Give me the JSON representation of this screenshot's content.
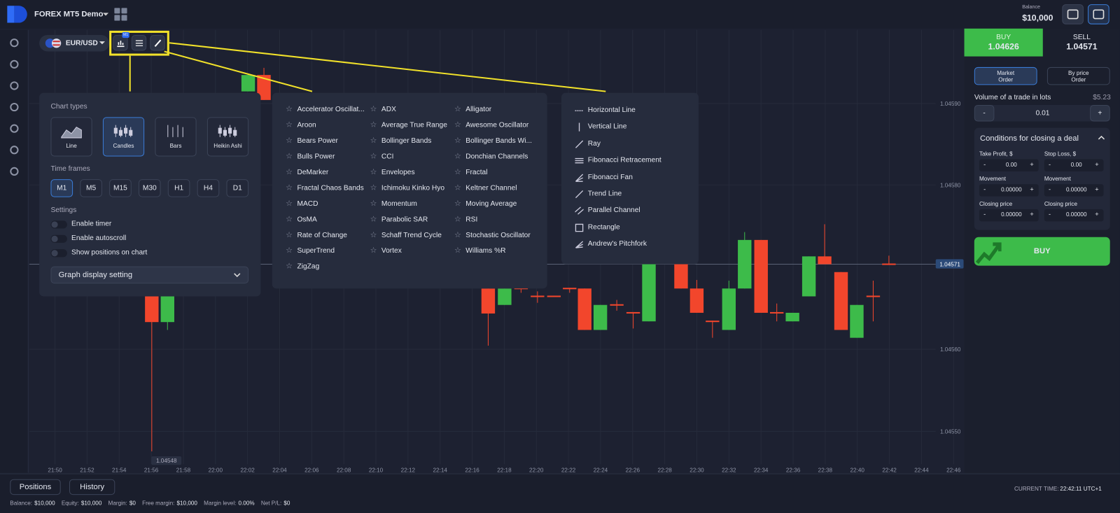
{
  "header": {
    "account": "FOREX MT5 Demo",
    "balance_label": "Balance",
    "balance": "$10,000"
  },
  "chart": {
    "symbol": "EUR/USD",
    "timeframe_badge": "M1",
    "price_labels": [
      "1.04590",
      "1.04580",
      "1.04560",
      "1.04550"
    ],
    "current_price": "1.04571",
    "low_label": "1.04548",
    "time_labels": [
      "21:50",
      "21:52",
      "21:54",
      "21:56",
      "21:58",
      "22:00",
      "22:02",
      "22:04",
      "22:06",
      "22:08",
      "22:10",
      "22:12",
      "22:14",
      "22:16",
      "22:18",
      "22:20",
      "22:22",
      "22:24",
      "22:26",
      "22:28",
      "22:30",
      "22:32",
      "22:34",
      "22:36",
      "22:38",
      "22:40",
      "22:42",
      "22:44",
      "22:46"
    ]
  },
  "chart_menu": {
    "chart_types_title": "Chart types",
    "chart_types": [
      "Line",
      "Candles",
      "Bars",
      "Heikin Ashi"
    ],
    "time_frames_title": "Time frames",
    "time_frames": [
      "M1",
      "M5",
      "M15",
      "M30",
      "H1",
      "H4",
      "D1"
    ],
    "settings_title": "Settings",
    "settings": [
      "Enable timer",
      "Enable autoscroll",
      "Show positions on chart"
    ],
    "graph_display": "Graph display setting"
  },
  "indicators": [
    "Accelerator Oscillat...",
    "ADX",
    "Alligator",
    "Aroon",
    "Average True Range",
    "Awesome Oscillator",
    "Bears Power",
    "Bollinger Bands",
    "Bollinger Bands Wi...",
    "Bulls Power",
    "CCI",
    "Donchian Channels",
    "DeMarker",
    "Envelopes",
    "Fractal",
    "Fractal Chaos Bands",
    "Ichimoku Kinko Hyo",
    "Keltner Channel",
    "MACD",
    "Momentum",
    "Moving Average",
    "OsMA",
    "Parabolic SAR",
    "RSI",
    "Rate of Change",
    "Schaff Trend Cycle",
    "Stochastic Oscillator",
    "SuperTrend",
    "Vortex",
    "Williams %R",
    "ZigZag"
  ],
  "drawing_tools": [
    "Horizontal Line",
    "Vertical Line",
    "Ray",
    "Fibonacci Retracement",
    "Fibonacci Fan",
    "Trend Line",
    "Parallel Channel",
    "Rectangle",
    "Andrew's Pitchfork"
  ],
  "trade": {
    "buy_label": "BUY",
    "buy_price": "1.04626",
    "sell_label": "SELL",
    "sell_price": "1.04571",
    "market_order": "Market Order",
    "by_price_order": "By price Order",
    "volume_label": "Volume of a trade in lots",
    "volume_cost": "$5.23",
    "volume": "0.01",
    "minus": "-",
    "plus": "+",
    "conditions_title": "Conditions for closing a deal",
    "fields": [
      {
        "label": "Take Profit, $",
        "value": "0.00"
      },
      {
        "label": "Stop Loss, $",
        "value": "0.00"
      },
      {
        "label": "Movement",
        "value": "0.00000"
      },
      {
        "label": "Movement",
        "value": "0.00000"
      },
      {
        "label": "Closing price",
        "value": "0.00000"
      },
      {
        "label": "Closing price",
        "value": "0.00000"
      }
    ],
    "buy_button": "BUY"
  },
  "footer": {
    "positions": "Positions",
    "history": "History",
    "current_time_label": "CURRENT TIME:",
    "current_time": "22:42:11 UTC+1",
    "stats": [
      {
        "label": "Balance:",
        "value": "$10,000"
      },
      {
        "label": "Equity:",
        "value": "$10,000"
      },
      {
        "label": "Margin:",
        "value": "$0"
      },
      {
        "label": "Free margin:",
        "value": "$10,000"
      },
      {
        "label": "Margin level:",
        "value": "0.00%"
      },
      {
        "label": "Net P/L:",
        "value": "$0"
      }
    ]
  }
}
